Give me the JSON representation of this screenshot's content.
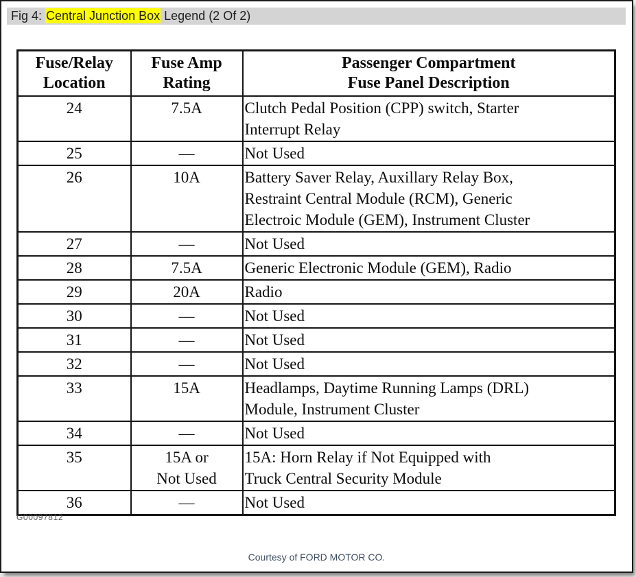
{
  "figure_bar": {
    "prefix": "Fig 4: ",
    "highlight": "Central Junction Box",
    "suffix": " Legend (2 Of 2)"
  },
  "colors": {
    "highlight": "#ffff00",
    "figbar_bg": "#d4d4d4",
    "table_border": "#161616",
    "courtesy_text": "#3f4e60"
  },
  "table": {
    "headers": [
      "Fuse/Relay\nLocation",
      "Fuse Amp\nRating",
      "Passenger Compartment\nFuse Panel Description"
    ],
    "rows": [
      {
        "location": "24",
        "rating": "7.5A",
        "description": "Clutch Pedal Position (CPP) switch, Starter\nInterrupt Relay"
      },
      {
        "location": "25",
        "rating": "—",
        "description": "Not Used"
      },
      {
        "location": "26",
        "rating": "10A",
        "description": "Battery Saver Relay, Auxillary Relay Box,\nRestraint Central Module (RCM), Generic\nElectroic Module (GEM), Instrument Cluster"
      },
      {
        "location": "27",
        "rating": "—",
        "description": "Not Used"
      },
      {
        "location": "28",
        "rating": "7.5A",
        "description": "Generic Electronic Module (GEM), Radio"
      },
      {
        "location": "29",
        "rating": "20A",
        "description": "Radio"
      },
      {
        "location": "30",
        "rating": "—",
        "description": "Not Used"
      },
      {
        "location": "31",
        "rating": "—",
        "description": "Not Used"
      },
      {
        "location": "32",
        "rating": "—",
        "description": "Not Used"
      },
      {
        "location": "33",
        "rating": "15A",
        "description": "Headlamps, Daytime Running Lamps (DRL)\nModule, Instrument Cluster"
      },
      {
        "location": "34",
        "rating": "—",
        "description": "Not Used"
      },
      {
        "location": "35",
        "rating": "15A or\nNot Used",
        "description": "15A: Horn Relay if Not Equipped with\nTruck Central Security Module"
      },
      {
        "location": "36",
        "rating": "—",
        "description": "Not Used"
      }
    ]
  },
  "footer": {
    "doc_number": "G00097812",
    "courtesy": "Courtesy of FORD MOTOR CO."
  }
}
